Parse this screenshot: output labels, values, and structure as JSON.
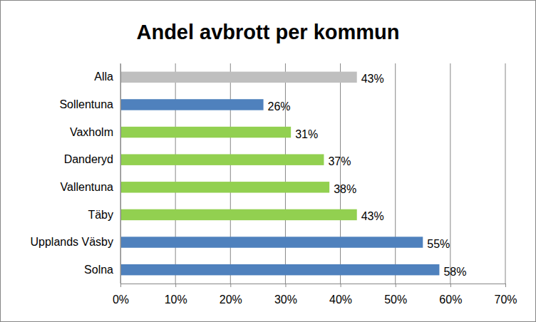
{
  "chart_data": {
    "type": "bar",
    "title": "Andel avbrott per kommun",
    "orientation": "horizontal",
    "categories": [
      "Alla",
      "Sollentuna",
      "Vaxholm",
      "Danderyd",
      "Vallentuna",
      "Täby",
      "Upplands Väsby",
      "Solna"
    ],
    "values": [
      43,
      26,
      31,
      37,
      38,
      43,
      55,
      58
    ],
    "value_labels": [
      "43%",
      "26%",
      "31%",
      "37%",
      "38%",
      "43%",
      "55%",
      "58%"
    ],
    "colors": [
      "#bfbfbf",
      "#4f81bd",
      "#92d050",
      "#92d050",
      "#92d050",
      "#92d050",
      "#4f81bd",
      "#4f81bd"
    ],
    "xlim": [
      0,
      70
    ],
    "xticks": [
      {
        "value": 0,
        "label": "0%"
      },
      {
        "value": 10,
        "label": "10%"
      },
      {
        "value": 20,
        "label": "20%"
      },
      {
        "value": 30,
        "label": "30%"
      },
      {
        "value": 40,
        "label": "40%"
      },
      {
        "value": 50,
        "label": "50%"
      },
      {
        "value": 60,
        "label": "60%"
      },
      {
        "value": 70,
        "label": "70%"
      }
    ],
    "grid": true,
    "data_labels": true
  }
}
